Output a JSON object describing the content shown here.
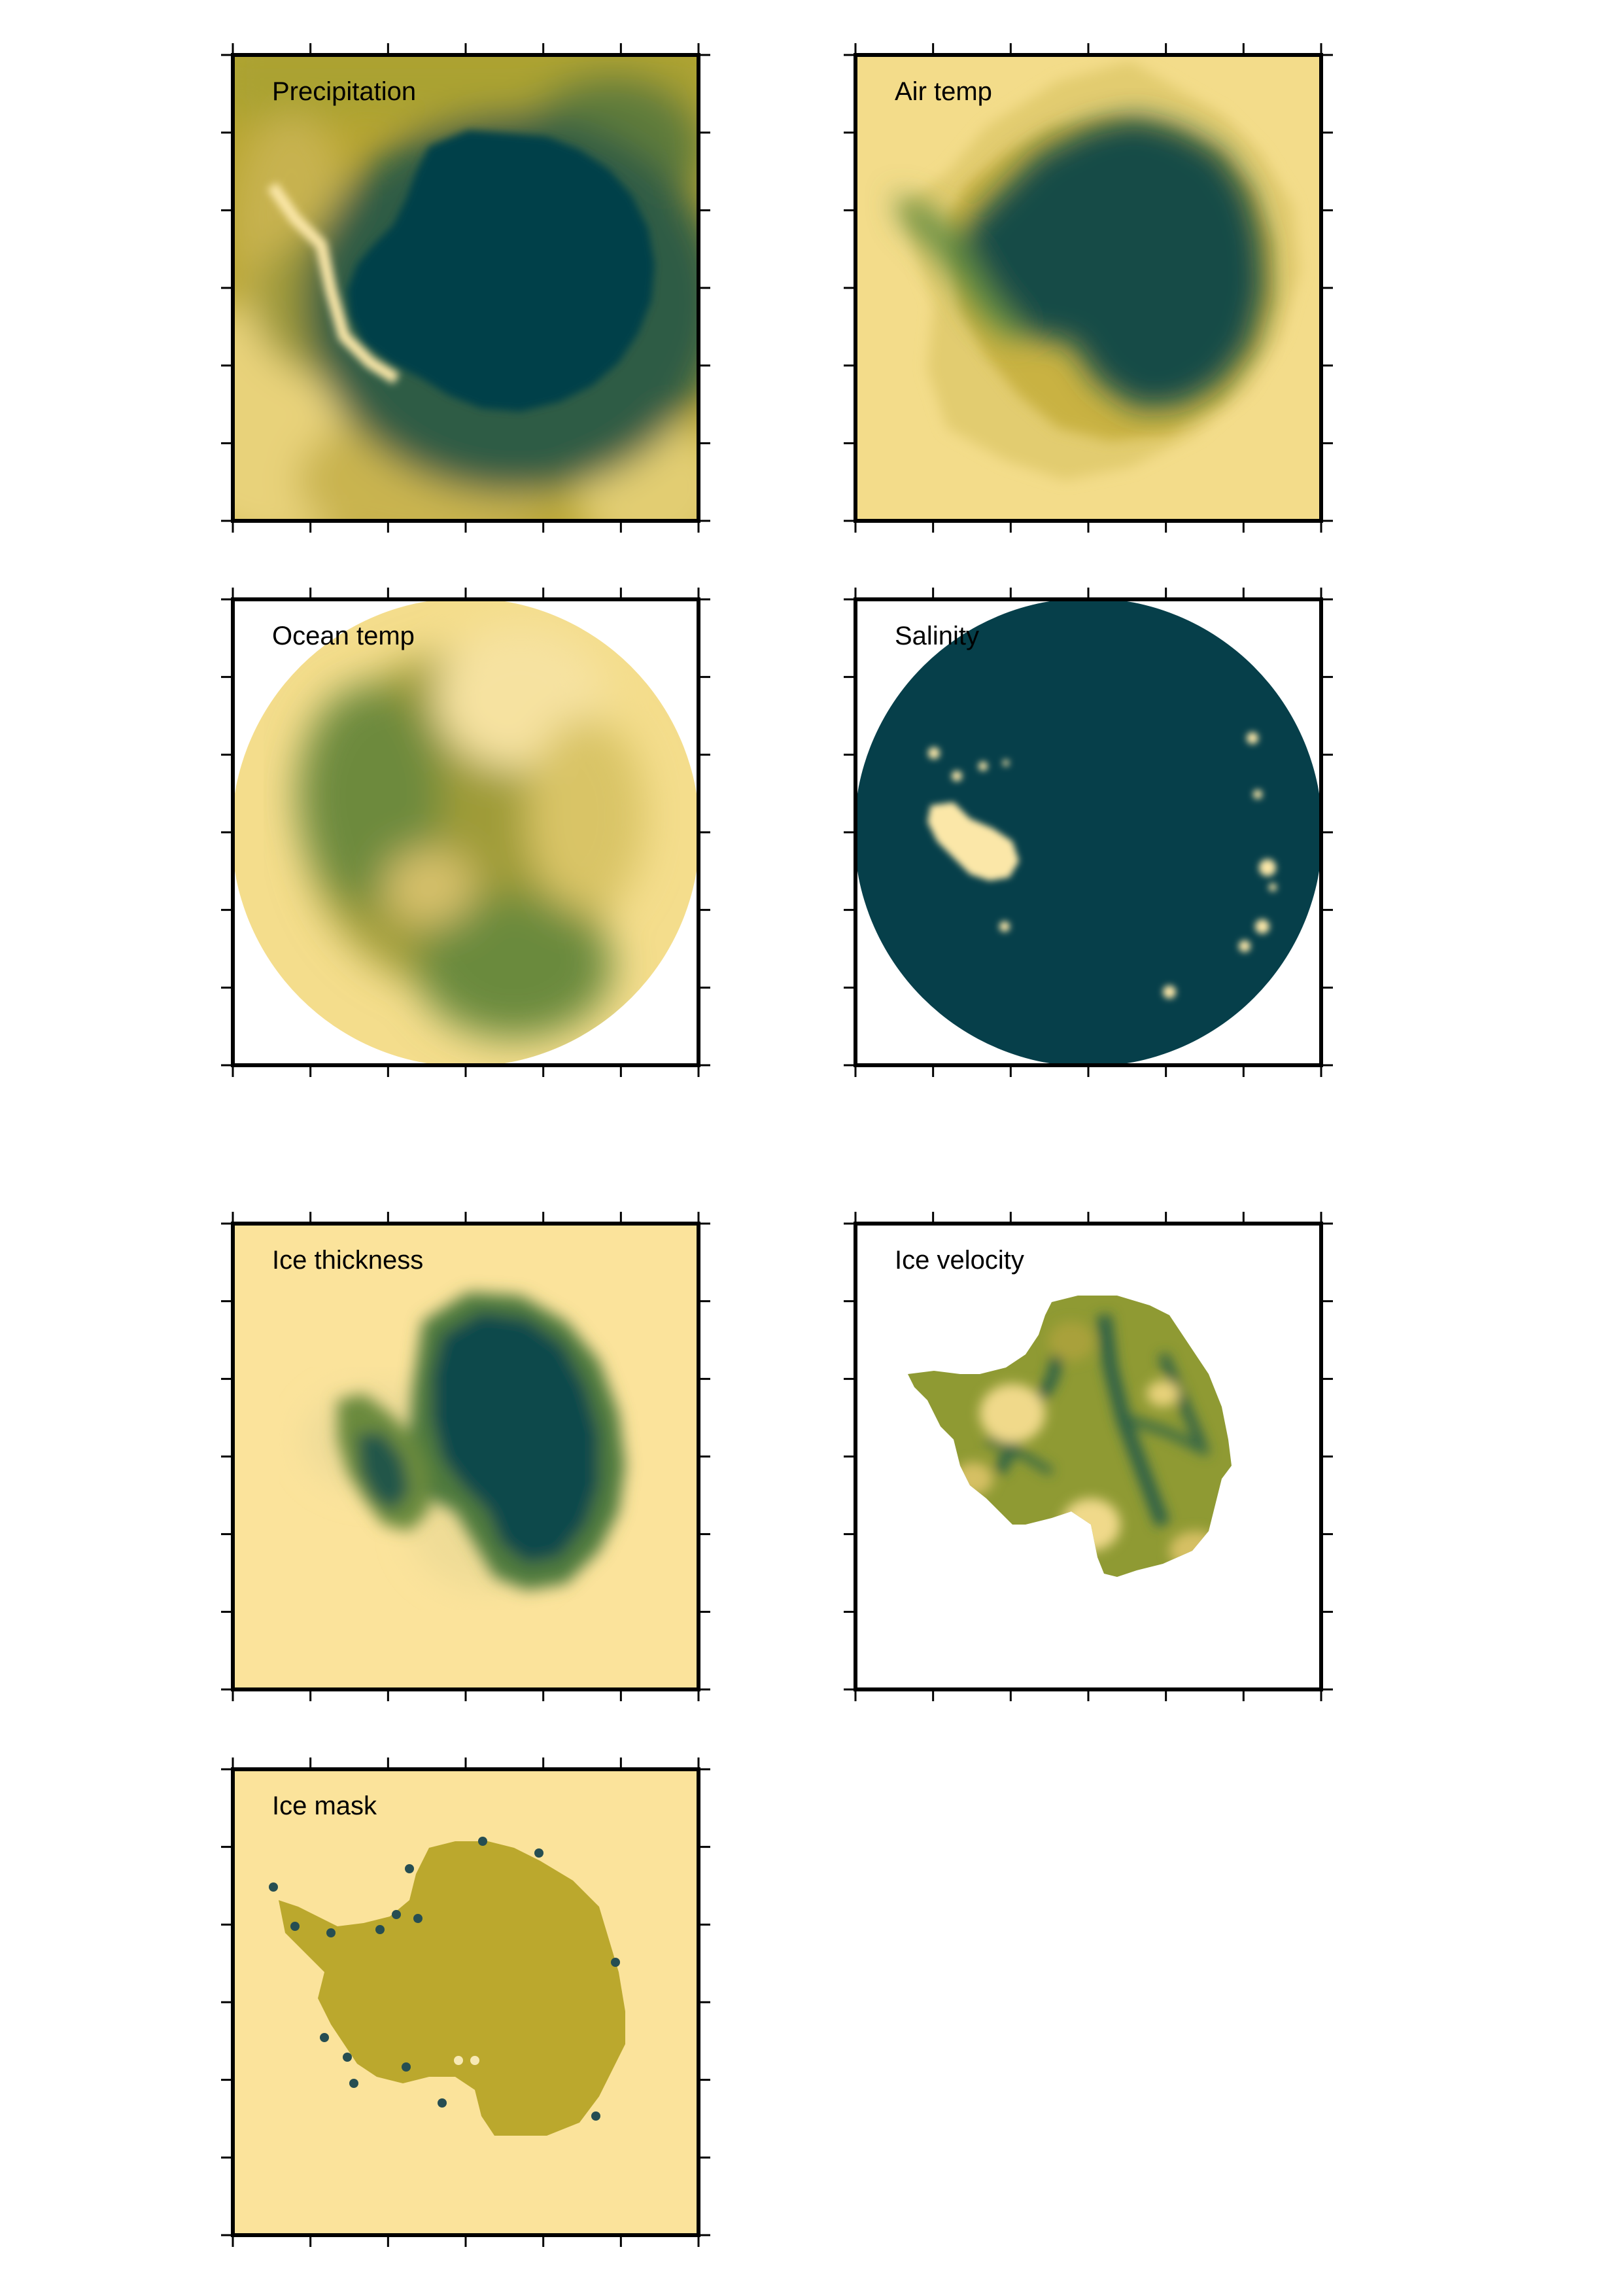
{
  "figure": {
    "colors": {
      "low": "#fde39b",
      "mid": "#b8a62c",
      "high": "#063f4a",
      "frame": "#000000",
      "outside": "#ffffff"
    }
  },
  "chart_data": [
    {
      "type": "heatmap",
      "title": "Precipitation",
      "grid": false,
      "ticks_per_side": 6
    },
    {
      "type": "heatmap",
      "title": "Air temp",
      "grid": false,
      "ticks_per_side": 6
    },
    {
      "type": "heatmap",
      "title": "Ocean temp",
      "grid": false,
      "ticks_per_side": 6
    },
    {
      "type": "heatmap",
      "title": "Salinity",
      "grid": false,
      "ticks_per_side": 6
    },
    {
      "type": "heatmap",
      "title": "Ice thickness",
      "grid": false,
      "ticks_per_side": 6
    },
    {
      "type": "heatmap",
      "title": "Ice velocity",
      "grid": false,
      "ticks_per_side": 6
    },
    {
      "type": "heatmap",
      "title": "Ice mask",
      "grid": false,
      "ticks_per_side": 6
    }
  ]
}
